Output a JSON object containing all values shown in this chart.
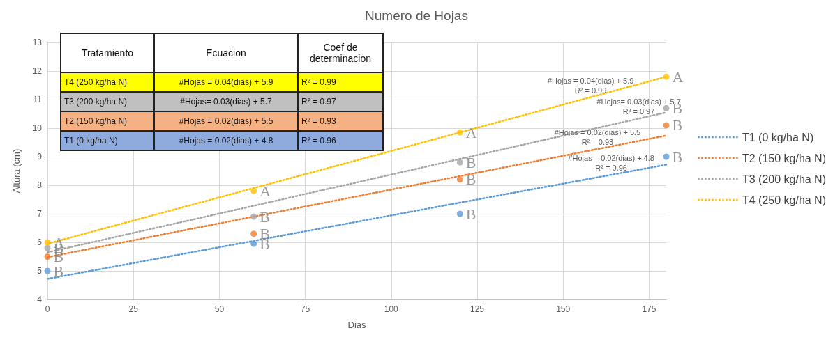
{
  "chart_data": [
    {
      "type": "scatter",
      "title": "Numero de Hojas",
      "xlabel": "Dias",
      "ylabel": "Altura (cm)",
      "x": [
        0,
        60,
        120,
        180
      ],
      "xlim": [
        0,
        180
      ],
      "xticks": [
        0,
        25,
        50,
        75,
        100,
        125,
        150,
        175
      ],
      "ylim": [
        4,
        13
      ],
      "yticks": [
        4,
        5,
        6,
        7,
        8,
        9,
        10,
        11,
        12,
        13
      ],
      "grid": true,
      "legend": "right",
      "marker": "circle",
      "series": [
        {
          "color": "#5b9bd5",
          "values": [
            5.0,
            5.95,
            7.0,
            9.0
          ],
          "value_labels": [
            "B",
            "B",
            "B",
            "B"
          ]
        },
        {
          "color": "#ed7d31",
          "values": [
            5.5,
            6.3,
            8.2,
            10.1
          ],
          "value_labels": [
            "B",
            "B",
            "B",
            "B"
          ]
        },
        {
          "color": "#a5a5a5",
          "values": [
            5.8,
            6.9,
            8.8,
            10.7
          ],
          "value_labels": [
            "B",
            "B",
            "B",
            "B"
          ]
        },
        {
          "color": "#ffc000",
          "values": [
            6.0,
            7.8,
            9.85,
            11.8
          ],
          "value_labels": [
            "A",
            "A",
            "A",
            "A"
          ]
        },
        {
          "type": "line",
          "name": "T1 (0 kg/ha N)",
          "color": "#5b9bd5",
          "values": [
            4.72,
            6.05,
            7.39,
            8.72
          ],
          "marker": "none",
          "line_style": "dotted"
        },
        {
          "type": "line",
          "name": "T2 (150 kg/ha N)",
          "color": "#ed7d31",
          "values": [
            5.48,
            6.9,
            8.32,
            9.74
          ],
          "marker": "none",
          "line_style": "dotted"
        },
        {
          "type": "line",
          "name": "T3 (200 kg/ha N)",
          "color": "#a5a5a5",
          "values": [
            5.65,
            7.28,
            8.92,
            10.55
          ],
          "marker": "none",
          "line_style": "dotted"
        },
        {
          "type": "line",
          "name": "T4 (250 kg/ha N)",
          "color": "#ffc000",
          "values": [
            5.95,
            7.9,
            9.85,
            11.8
          ],
          "marker": "none",
          "line_style": "dotted"
        }
      ],
      "annotations": [
        {
          "text": "#Hojas = 0.04(dias) + 5.9\nR² = 0.99",
          "x": 158,
          "y": 11.08
        },
        {
          "text": "#Hojas= 0.03(dias) + 5.7\nR² = 0.97",
          "x": 172,
          "y": 10.33
        },
        {
          "text": "#Hojas = 0.02(dias) + 5.5\nR² = 0.93",
          "x": 160,
          "y": 9.27
        },
        {
          "text": "#Hojas = 0.02(dias) + 4.8\nR² = 0.96",
          "x": 164,
          "y": 8.36
        }
      ]
    },
    {
      "type": "other",
      "annotations": [
        "Tratamiento",
        "Ecuacion",
        "Coef de determinacion",
        "T4 (250 kg/ha N)",
        "#Hojas = 0.04(dias) + 5.9",
        "R² = 0.99",
        "T3 (200 kg/ha N)",
        "#Hojas= 0.03(dias) + 5.7",
        "R² = 0.97",
        "T2 (150 kg/ha N)",
        "#Hojas = 0.02(dias) + 5.5",
        "R² = 0.93",
        "T1 (0 kg/ha N)",
        "#Hojas = 0.02(dias) + 4.8",
        "R² = 0.96"
      ]
    }
  ]
}
